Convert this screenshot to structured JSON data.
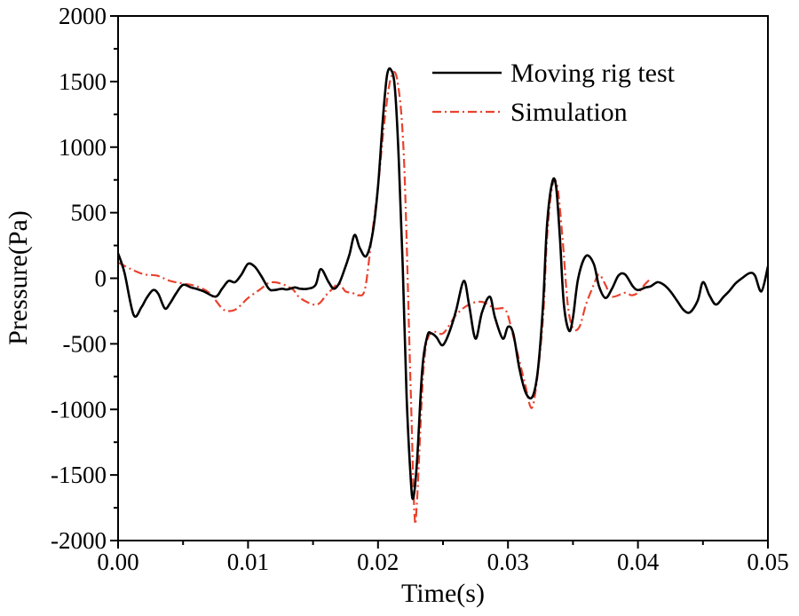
{
  "chart_data": {
    "type": "line",
    "title": "",
    "xlabel": "Time(s)",
    "ylabel": "Pressure(Pa)",
    "xlim": [
      0,
      0.05
    ],
    "ylim": [
      -2000,
      2000
    ],
    "xticks": [
      0,
      0.01,
      0.02,
      0.03,
      0.04,
      0.05
    ],
    "xtick_labels": [
      "0.00",
      "0.01",
      "0.02",
      "0.03",
      "0.04",
      "0.05"
    ],
    "yticks": [
      -2000,
      -1500,
      -1000,
      -500,
      0,
      500,
      1000,
      1500,
      2000
    ],
    "ytick_labels": [
      "-2000",
      "-1500",
      "-1000",
      "-500",
      "0",
      "500",
      "1000",
      "1500",
      "2000"
    ],
    "grid": false,
    "legend_position": "top-right",
    "series": [
      {
        "name": "Moving rig test",
        "color": "#000000",
        "style": "solid",
        "x": [
          0,
          0.0005,
          0.0012,
          0.0018,
          0.0022,
          0.0027,
          0.0031,
          0.0036,
          0.004,
          0.0045,
          0.005,
          0.0056,
          0.006,
          0.0066,
          0.0075,
          0.008,
          0.0085,
          0.009,
          0.0095,
          0.01,
          0.0105,
          0.011,
          0.0116,
          0.012,
          0.0126,
          0.013,
          0.0136,
          0.014,
          0.0146,
          0.0152,
          0.0156,
          0.0162,
          0.0166,
          0.017,
          0.0174,
          0.0178,
          0.0182,
          0.0186,
          0.0191,
          0.0196,
          0.02,
          0.0204,
          0.0207,
          0.021,
          0.0213,
          0.0216,
          0.0219,
          0.0222,
          0.0225,
          0.0227,
          0.023,
          0.0234,
          0.0238,
          0.0241,
          0.0245,
          0.0249,
          0.0252,
          0.0256,
          0.026,
          0.0266,
          0.027,
          0.0275,
          0.028,
          0.0286,
          0.029,
          0.0296,
          0.03,
          0.0304,
          0.0309,
          0.0314,
          0.0319,
          0.0323,
          0.0327,
          0.033,
          0.0334,
          0.0337,
          0.034,
          0.0343,
          0.0347,
          0.035,
          0.0354,
          0.036,
          0.0366,
          0.037,
          0.0375,
          0.038,
          0.0385,
          0.039,
          0.0396,
          0.04,
          0.0406,
          0.041,
          0.0415,
          0.042,
          0.0425,
          0.043,
          0.0435,
          0.044,
          0.0446,
          0.045,
          0.0455,
          0.046,
          0.0466,
          0.047,
          0.0475,
          0.048,
          0.0486,
          0.049,
          0.0495,
          0.05
        ],
        "y": [
          190,
          40,
          -280,
          -220,
          -150,
          -90,
          -120,
          -230,
          -190,
          -110,
          -50,
          -70,
          -80,
          -100,
          -140,
          -80,
          -20,
          -30,
          30,
          110,
          90,
          20,
          -80,
          -90,
          -80,
          -85,
          -70,
          -80,
          -80,
          -50,
          70,
          -30,
          -80,
          -40,
          60,
          180,
          330,
          230,
          170,
          350,
          700,
          1250,
          1550,
          1590,
          1450,
          900,
          100,
          -900,
          -1500,
          -1680,
          -1400,
          -700,
          -440,
          -420,
          -450,
          -510,
          -480,
          -380,
          -250,
          -20,
          -200,
          -460,
          -260,
          -140,
          -300,
          -460,
          -370,
          -420,
          -700,
          -880,
          -900,
          -700,
          -200,
          400,
          730,
          700,
          300,
          -200,
          -400,
          -300,
          0,
          170,
          110,
          -60,
          -150,
          -80,
          20,
          30,
          -60,
          -90,
          -70,
          -60,
          -30,
          -50,
          -100,
          -170,
          -240,
          -260,
          -170,
          -30,
          -130,
          -200,
          -140,
          -100,
          -40,
          0,
          40,
          20,
          -100,
          90
        ]
      },
      {
        "name": "Simulation",
        "color": "#e8432f",
        "style": "dashdot",
        "x": [
          0,
          0.001,
          0.002,
          0.003,
          0.004,
          0.005,
          0.006,
          0.007,
          0.008,
          0.0085,
          0.009,
          0.0095,
          0.01,
          0.011,
          0.0115,
          0.012,
          0.0125,
          0.013,
          0.0135,
          0.014,
          0.015,
          0.0155,
          0.016,
          0.0165,
          0.017,
          0.0175,
          0.018,
          0.0185,
          0.019,
          0.0195,
          0.02,
          0.0205,
          0.021,
          0.0215,
          0.022,
          0.0225,
          0.0228,
          0.023,
          0.0235,
          0.024,
          0.025,
          0.026,
          0.027,
          0.028,
          0.029,
          0.0298,
          0.0303,
          0.0308,
          0.0313,
          0.0318,
          0.0322,
          0.0327,
          0.033,
          0.0334,
          0.0338,
          0.0342,
          0.0346,
          0.035,
          0.0355,
          0.036,
          0.0366,
          0.037,
          0.0375,
          0.038,
          0.039,
          0.0395,
          0.04,
          0.0405,
          0.041
        ],
        "y": [
          120,
          70,
          30,
          20,
          -20,
          -40,
          -60,
          -110,
          -230,
          -250,
          -240,
          -200,
          -150,
          -80,
          -40,
          -30,
          -40,
          -60,
          -90,
          -150,
          -200,
          -190,
          -130,
          -80,
          -40,
          -100,
          -110,
          -130,
          -80,
          300,
          700,
          1200,
          1530,
          1500,
          900,
          -800,
          -1790,
          -1700,
          -700,
          -420,
          -420,
          -280,
          -200,
          -180,
          -230,
          -240,
          -400,
          -600,
          -800,
          -990,
          -800,
          -300,
          300,
          700,
          700,
          300,
          -200,
          -380,
          -370,
          -200,
          -50,
          30,
          -50,
          -140,
          -110,
          -130,
          -110,
          -50,
          0
        ]
      }
    ]
  }
}
